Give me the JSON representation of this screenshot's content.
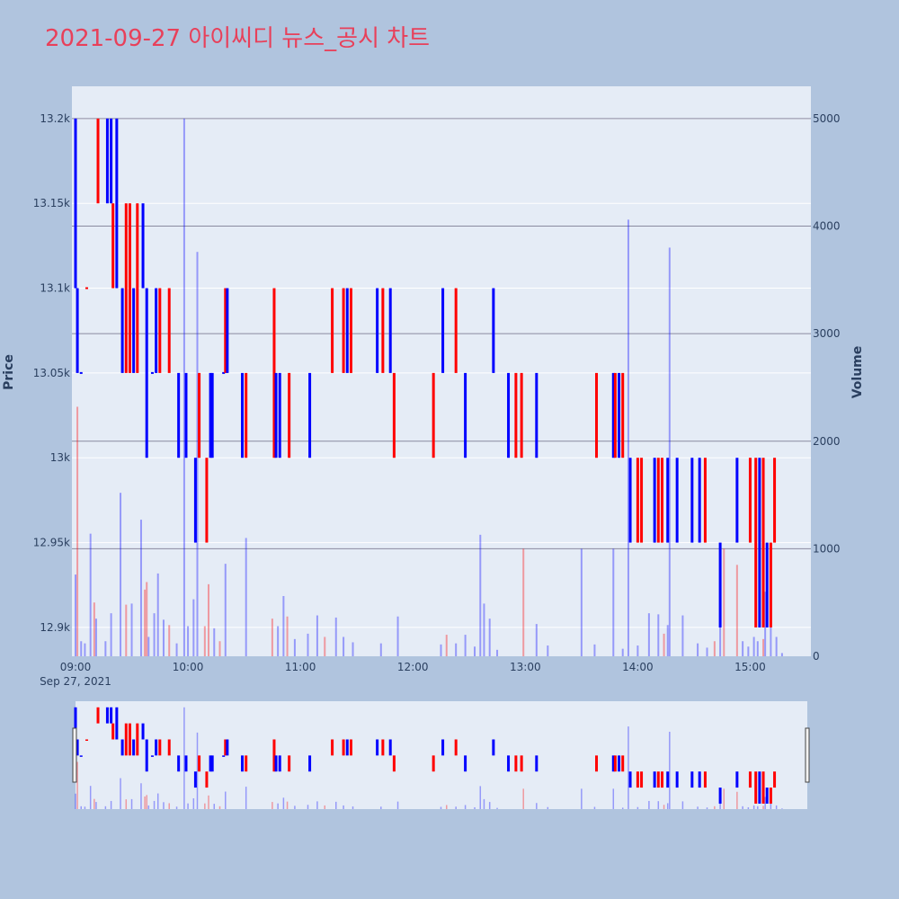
{
  "title": "2021-09-27 아이씨디 뉴스_공시 차트",
  "colors": {
    "up": "#ff0000",
    "down": "#0000ff",
    "background": "#b0c4de",
    "plot_bg": "#e5ecf6",
    "title": "#e8405a"
  },
  "chart_data": {
    "type": "candlestick",
    "title": "2021-09-27 아이씨디 뉴스_공시 차트",
    "y_left_label": "Price",
    "y_right_label": "Volume",
    "x_tick_labels": [
      "09:00",
      "10:00",
      "11:00",
      "12:00",
      "13:00",
      "14:00",
      "15:00"
    ],
    "x_date_label": "Sep 27, 2021",
    "price_ticks": [
      {
        "value": 12900,
        "label": "12.9k"
      },
      {
        "value": 12950,
        "label": "12.95k"
      },
      {
        "value": 13000,
        "label": "13k"
      },
      {
        "value": 13050,
        "label": "13.05k"
      },
      {
        "value": 13100,
        "label": "13.1k"
      },
      {
        "value": 13150,
        "label": "13.15k"
      },
      {
        "value": 13200,
        "label": "13.2k"
      }
    ],
    "volume_ticks": [
      {
        "value": 0,
        "label": "0"
      },
      {
        "value": 1000,
        "label": "1000"
      },
      {
        "value": 2000,
        "label": "2000"
      },
      {
        "value": 3000,
        "label": "3000"
      },
      {
        "value": 4000,
        "label": "4000"
      },
      {
        "value": 5000,
        "label": "5000"
      }
    ],
    "price_range": [
      12883,
      13219
    ],
    "volume_range": [
      0,
      5300
    ],
    "time_range": [
      "09:00",
      "15:30"
    ],
    "has_rangeslider": true,
    "candles": [
      {
        "t": "09:00",
        "o": 13200,
        "c": 13100,
        "color": "down"
      },
      {
        "t": "09:01",
        "o": 13100,
        "c": 13050,
        "color": "down"
      },
      {
        "t": "09:03",
        "o": 13050,
        "c": 13050,
        "color": "down"
      },
      {
        "t": "09:06",
        "o": 13100,
        "c": 13100,
        "color": "up"
      },
      {
        "t": "09:12",
        "o": 13150,
        "c": 13200,
        "color": "up"
      },
      {
        "t": "09:17",
        "o": 13200,
        "c": 13150,
        "color": "down"
      },
      {
        "t": "09:19",
        "o": 13150,
        "c": 13200,
        "color": "down"
      },
      {
        "t": "09:20",
        "o": 13150,
        "c": 13100,
        "color": "up"
      },
      {
        "t": "09:22",
        "o": 13200,
        "c": 13100,
        "color": "down"
      },
      {
        "t": "09:25",
        "o": 13100,
        "c": 13050,
        "color": "down"
      },
      {
        "t": "09:27",
        "o": 13150,
        "c": 13050,
        "color": "up"
      },
      {
        "t": "09:29",
        "o": 13150,
        "c": 13050,
        "color": "up"
      },
      {
        "t": "09:31",
        "o": 13100,
        "c": 13050,
        "color": "down"
      },
      {
        "t": "09:33",
        "o": 13150,
        "c": 13050,
        "color": "up"
      },
      {
        "t": "09:36",
        "o": 13150,
        "c": 13100,
        "color": "down"
      },
      {
        "t": "09:38",
        "o": 13100,
        "c": 13000,
        "color": "down"
      },
      {
        "t": "09:41",
        "o": 13050,
        "c": 13050,
        "color": "down"
      },
      {
        "t": "09:43",
        "o": 13100,
        "c": 13050,
        "color": "down"
      },
      {
        "t": "09:45",
        "o": 13100,
        "c": 13050,
        "color": "up"
      },
      {
        "t": "09:50",
        "o": 13100,
        "c": 13050,
        "color": "up"
      },
      {
        "t": "09:55",
        "o": 13050,
        "c": 13000,
        "color": "down"
      },
      {
        "t": "09:59",
        "o": 13050,
        "c": 13000,
        "color": "down"
      },
      {
        "t": "10:04",
        "o": 13000,
        "c": 12950,
        "color": "down"
      },
      {
        "t": "10:06",
        "o": 13050,
        "c": 13000,
        "color": "up"
      },
      {
        "t": "10:10",
        "o": 13000,
        "c": 12950,
        "color": "up"
      },
      {
        "t": "10:12",
        "o": 13050,
        "c": 13000,
        "color": "down"
      },
      {
        "t": "10:13",
        "o": 13050,
        "c": 13000,
        "color": "down"
      },
      {
        "t": "10:19",
        "o": 13050,
        "c": 13050,
        "color": "down"
      },
      {
        "t": "10:20",
        "o": 13100,
        "c": 13050,
        "color": "up"
      },
      {
        "t": "10:21",
        "o": 13100,
        "c": 13050,
        "color": "down"
      },
      {
        "t": "10:29",
        "o": 13050,
        "c": 13000,
        "color": "down"
      },
      {
        "t": "10:31",
        "o": 13050,
        "c": 13000,
        "color": "up"
      },
      {
        "t": "10:46",
        "o": 13100,
        "c": 13000,
        "color": "up"
      },
      {
        "t": "10:47",
        "o": 13050,
        "c": 13000,
        "color": "down"
      },
      {
        "t": "10:49",
        "o": 13050,
        "c": 13000,
        "color": "down"
      },
      {
        "t": "10:54",
        "o": 13050,
        "c": 13000,
        "color": "up"
      },
      {
        "t": "11:05",
        "o": 13050,
        "c": 13000,
        "color": "down"
      },
      {
        "t": "11:17",
        "o": 13100,
        "c": 13050,
        "color": "up"
      },
      {
        "t": "11:23",
        "o": 13100,
        "c": 13050,
        "color": "up"
      },
      {
        "t": "11:25",
        "o": 13100,
        "c": 13050,
        "color": "down"
      },
      {
        "t": "11:27",
        "o": 13100,
        "c": 13050,
        "color": "up"
      },
      {
        "t": "11:41",
        "o": 13100,
        "c": 13050,
        "color": "down"
      },
      {
        "t": "11:44",
        "o": 13100,
        "c": 13050,
        "color": "up"
      },
      {
        "t": "11:48",
        "o": 13100,
        "c": 13050,
        "color": "down"
      },
      {
        "t": "11:50",
        "o": 13050,
        "c": 13000,
        "color": "up"
      },
      {
        "t": "12:11",
        "o": 13050,
        "c": 13000,
        "color": "up"
      },
      {
        "t": "12:16",
        "o": 13100,
        "c": 13050,
        "color": "down"
      },
      {
        "t": "12:23",
        "o": 13100,
        "c": 13050,
        "color": "up"
      },
      {
        "t": "12:28",
        "o": 13050,
        "c": 13000,
        "color": "down"
      },
      {
        "t": "12:43",
        "o": 13100,
        "c": 13050,
        "color": "down"
      },
      {
        "t": "12:51",
        "o": 13050,
        "c": 13000,
        "color": "down"
      },
      {
        "t": "12:55",
        "o": 13050,
        "c": 13000,
        "color": "up"
      },
      {
        "t": "12:58",
        "o": 13050,
        "c": 13000,
        "color": "up"
      },
      {
        "t": "13:06",
        "o": 13050,
        "c": 13000,
        "color": "down"
      },
      {
        "t": "13:38",
        "o": 13050,
        "c": 13000,
        "color": "up"
      },
      {
        "t": "13:47",
        "o": 13050,
        "c": 13000,
        "color": "down"
      },
      {
        "t": "13:48",
        "o": 13050,
        "c": 13000,
        "color": "up"
      },
      {
        "t": "13:50",
        "o": 13050,
        "c": 13000,
        "color": "down"
      },
      {
        "t": "13:52",
        "o": 13050,
        "c": 13000,
        "color": "up"
      },
      {
        "t": "13:56",
        "o": 13000,
        "c": 12950,
        "color": "down"
      },
      {
        "t": "14:00",
        "o": 13000,
        "c": 12950,
        "color": "up"
      },
      {
        "t": "14:02",
        "o": 13000,
        "c": 12950,
        "color": "up"
      },
      {
        "t": "14:09",
        "o": 13000,
        "c": 12950,
        "color": "down"
      },
      {
        "t": "14:11",
        "o": 13000,
        "c": 12950,
        "color": "up"
      },
      {
        "t": "14:13",
        "o": 13000,
        "c": 12950,
        "color": "up"
      },
      {
        "t": "14:16",
        "o": 13000,
        "c": 12950,
        "color": "down"
      },
      {
        "t": "14:21",
        "o": 13000,
        "c": 12950,
        "color": "down"
      },
      {
        "t": "14:29",
        "o": 13000,
        "c": 12950,
        "color": "down"
      },
      {
        "t": "14:33",
        "o": 13000,
        "c": 12950,
        "color": "down"
      },
      {
        "t": "14:36",
        "o": 13000,
        "c": 12950,
        "color": "up"
      },
      {
        "t": "14:44",
        "o": 12950,
        "c": 12900,
        "color": "down"
      },
      {
        "t": "14:53",
        "o": 13000,
        "c": 12950,
        "color": "down"
      },
      {
        "t": "15:00",
        "o": 13000,
        "c": 12950,
        "color": "up"
      },
      {
        "t": "15:03",
        "o": 13000,
        "c": 12900,
        "color": "up"
      },
      {
        "t": "15:05",
        "o": 13000,
        "c": 12900,
        "color": "down"
      },
      {
        "t": "15:07",
        "o": 13000,
        "c": 12900,
        "color": "up"
      },
      {
        "t": "15:09",
        "o": 12950,
        "c": 12900,
        "color": "down"
      },
      {
        "t": "15:11",
        "o": 12950,
        "c": 12900,
        "color": "up"
      },
      {
        "t": "15:13",
        "o": 13000,
        "c": 12950,
        "color": "up"
      }
    ],
    "volume": [
      {
        "t": "09:00",
        "v": 760,
        "color": "down"
      },
      {
        "t": "09:01",
        "v": 2320,
        "color": "up"
      },
      {
        "t": "09:03",
        "v": 140,
        "color": "down"
      },
      {
        "t": "09:05",
        "v": 120,
        "color": "down"
      },
      {
        "t": "09:08",
        "v": 1140,
        "color": "down"
      },
      {
        "t": "09:10",
        "v": 500,
        "color": "up"
      },
      {
        "t": "09:11",
        "v": 350,
        "color": "down"
      },
      {
        "t": "09:16",
        "v": 140,
        "color": "down"
      },
      {
        "t": "09:19",
        "v": 400,
        "color": "down"
      },
      {
        "t": "09:24",
        "v": 1520,
        "color": "down"
      },
      {
        "t": "09:27",
        "v": 480,
        "color": "up"
      },
      {
        "t": "09:30",
        "v": 490,
        "color": "down"
      },
      {
        "t": "09:35",
        "v": 1270,
        "color": "down"
      },
      {
        "t": "09:37",
        "v": 620,
        "color": "up"
      },
      {
        "t": "09:38",
        "v": 690,
        "color": "up"
      },
      {
        "t": "09:39",
        "v": 180,
        "color": "down"
      },
      {
        "t": "09:42",
        "v": 400,
        "color": "down"
      },
      {
        "t": "09:44",
        "v": 770,
        "color": "down"
      },
      {
        "t": "09:47",
        "v": 340,
        "color": "down"
      },
      {
        "t": "09:50",
        "v": 290,
        "color": "up"
      },
      {
        "t": "09:54",
        "v": 120,
        "color": "down"
      },
      {
        "t": "09:58",
        "v": 5000,
        "color": "down"
      },
      {
        "t": "10:00",
        "v": 280,
        "color": "down"
      },
      {
        "t": "10:03",
        "v": 530,
        "color": "down"
      },
      {
        "t": "10:05",
        "v": 3760,
        "color": "down"
      },
      {
        "t": "10:09",
        "v": 280,
        "color": "up"
      },
      {
        "t": "10:11",
        "v": 670,
        "color": "up"
      },
      {
        "t": "10:14",
        "v": 260,
        "color": "down"
      },
      {
        "t": "10:17",
        "v": 140,
        "color": "up"
      },
      {
        "t": "10:20",
        "v": 860,
        "color": "down"
      },
      {
        "t": "10:31",
        "v": 1100,
        "color": "down"
      },
      {
        "t": "10:45",
        "v": 350,
        "color": "up"
      },
      {
        "t": "10:48",
        "v": 280,
        "color": "down"
      },
      {
        "t": "10:51",
        "v": 560,
        "color": "down"
      },
      {
        "t": "10:53",
        "v": 370,
        "color": "up"
      },
      {
        "t": "10:57",
        "v": 160,
        "color": "down"
      },
      {
        "t": "11:04",
        "v": 210,
        "color": "down"
      },
      {
        "t": "11:09",
        "v": 380,
        "color": "down"
      },
      {
        "t": "11:13",
        "v": 180,
        "color": "up"
      },
      {
        "t": "11:19",
        "v": 360,
        "color": "down"
      },
      {
        "t": "11:23",
        "v": 180,
        "color": "down"
      },
      {
        "t": "11:28",
        "v": 130,
        "color": "down"
      },
      {
        "t": "11:43",
        "v": 120,
        "color": "down"
      },
      {
        "t": "11:52",
        "v": 370,
        "color": "down"
      },
      {
        "t": "12:15",
        "v": 110,
        "color": "down"
      },
      {
        "t": "12:18",
        "v": 200,
        "color": "up"
      },
      {
        "t": "12:23",
        "v": 120,
        "color": "down"
      },
      {
        "t": "12:28",
        "v": 200,
        "color": "down"
      },
      {
        "t": "12:33",
        "v": 90,
        "color": "down"
      },
      {
        "t": "12:36",
        "v": 1130,
        "color": "down"
      },
      {
        "t": "12:38",
        "v": 490,
        "color": "down"
      },
      {
        "t": "12:41",
        "v": 350,
        "color": "down"
      },
      {
        "t": "12:45",
        "v": 60,
        "color": "down"
      },
      {
        "t": "12:59",
        "v": 1000,
        "color": "up"
      },
      {
        "t": "13:06",
        "v": 300,
        "color": "down"
      },
      {
        "t": "13:12",
        "v": 100,
        "color": "down"
      },
      {
        "t": "13:30",
        "v": 1000,
        "color": "down"
      },
      {
        "t": "13:37",
        "v": 110,
        "color": "down"
      },
      {
        "t": "13:47",
        "v": 1000,
        "color": "down"
      },
      {
        "t": "13:52",
        "v": 70,
        "color": "down"
      },
      {
        "t": "13:55",
        "v": 4060,
        "color": "down"
      },
      {
        "t": "14:00",
        "v": 100,
        "color": "down"
      },
      {
        "t": "14:06",
        "v": 400,
        "color": "down"
      },
      {
        "t": "14:11",
        "v": 390,
        "color": "down"
      },
      {
        "t": "14:14",
        "v": 210,
        "color": "up"
      },
      {
        "t": "14:16",
        "v": 290,
        "color": "down"
      },
      {
        "t": "14:17",
        "v": 3800,
        "color": "down"
      },
      {
        "t": "14:24",
        "v": 380,
        "color": "down"
      },
      {
        "t": "14:32",
        "v": 120,
        "color": "down"
      },
      {
        "t": "14:37",
        "v": 80,
        "color": "down"
      },
      {
        "t": "14:41",
        "v": 140,
        "color": "up"
      },
      {
        "t": "14:44",
        "v": 480,
        "color": "down"
      },
      {
        "t": "14:46",
        "v": 1000,
        "color": "up"
      },
      {
        "t": "14:53",
        "v": 850,
        "color": "up"
      },
      {
        "t": "14:56",
        "v": 140,
        "color": "down"
      },
      {
        "t": "14:59",
        "v": 90,
        "color": "down"
      },
      {
        "t": "15:02",
        "v": 180,
        "color": "down"
      },
      {
        "t": "15:04",
        "v": 140,
        "color": "down"
      },
      {
        "t": "15:07",
        "v": 160,
        "color": "up"
      },
      {
        "t": "15:08",
        "v": 600,
        "color": "down"
      },
      {
        "t": "15:11",
        "v": 500,
        "color": "down"
      },
      {
        "t": "15:14",
        "v": 180,
        "color": "down"
      },
      {
        "t": "15:17",
        "v": 30,
        "color": "down"
      }
    ]
  }
}
